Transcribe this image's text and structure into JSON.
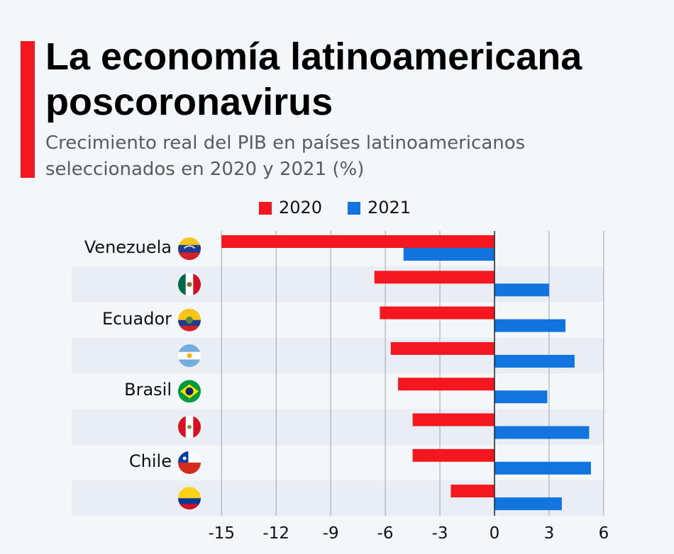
{
  "header": {
    "title": "La economía latinoamericana poscoronavirus",
    "subtitle": "Crecimiento real del PIB en países latinoamericanos seleccionados en 2020 y 2021 (%)"
  },
  "colors": {
    "accent": "#f5171f",
    "series_2020": "#f5171f",
    "series_2021": "#1174df",
    "band": "#e8eef4",
    "grid": "#9aa3ab",
    "zero_line": "#222222"
  },
  "chart_data": {
    "type": "bar",
    "orientation": "horizontal",
    "categories": [
      "Venezuela",
      "México",
      "Ecuador",
      "Argentina",
      "Brasil",
      "Perú",
      "Chile",
      "Colombia"
    ],
    "category_icons": [
      "venezuela-flag-icon",
      "mexico-flag-icon",
      "ecuador-flag-icon",
      "argentina-flag-icon",
      "brazil-flag-icon",
      "peru-flag-icon",
      "chile-flag-icon",
      "colombia-flag-icon"
    ],
    "series": [
      {
        "name": "2020",
        "color": "#f5171f",
        "values": [
          -15.0,
          -6.6,
          -6.3,
          -5.7,
          -5.3,
          -4.5,
          -4.5,
          -2.4
        ]
      },
      {
        "name": "2021",
        "color": "#1174df",
        "values": [
          -5.0,
          3.0,
          3.9,
          4.4,
          2.9,
          5.2,
          5.3,
          3.7
        ]
      }
    ],
    "xlim": [
      -15,
      6
    ],
    "xticks": [
      -15,
      -12,
      -9,
      -6,
      -3,
      0,
      3,
      6
    ],
    "xtick_labels": [
      "-15",
      "-12",
      "-9",
      "-6",
      "-3",
      "0",
      "3",
      "6"
    ],
    "grid": true,
    "legend_position": "top-center"
  }
}
